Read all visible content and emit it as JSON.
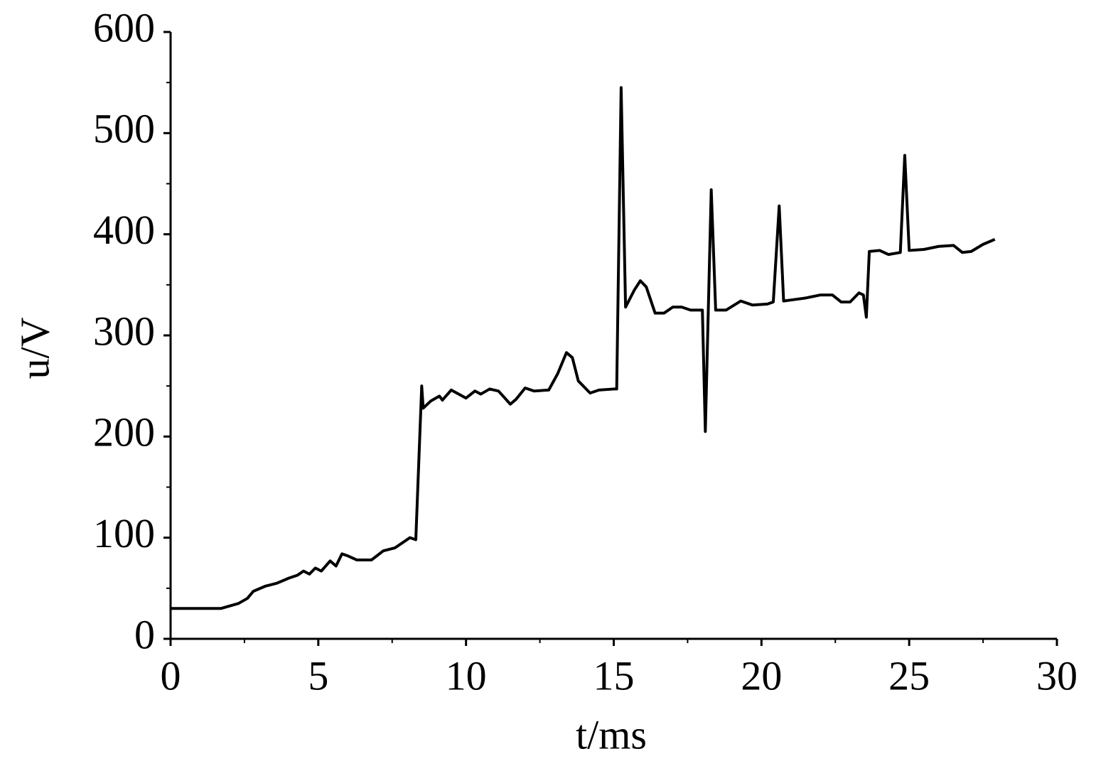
{
  "chart_data": {
    "type": "line",
    "x_label": "t/ms",
    "y_label": "u/V",
    "xlim": [
      0,
      30
    ],
    "xticks": [
      0,
      5,
      10,
      15,
      20,
      25,
      30
    ],
    "xminorticks": [
      2.5,
      7.5,
      12.5,
      17.5,
      22.5,
      27.5
    ],
    "ylim": [
      0,
      600
    ],
    "yticks": [
      0,
      100,
      200,
      300,
      400,
      500,
      600
    ],
    "yminorticks": [
      50,
      150,
      250,
      350,
      450,
      550
    ],
    "grid": false,
    "series": [
      {
        "color": "#000000",
        "x": [
          0,
          1.7,
          2.3,
          2.6,
          2.8,
          3.2,
          3.6,
          4.0,
          4.3,
          4.5,
          4.7,
          4.9,
          5.1,
          5.4,
          5.6,
          5.8,
          6.0,
          6.3,
          6.8,
          7.2,
          7.6,
          7.9,
          8.1,
          8.3,
          8.5,
          8.55,
          8.8,
          9.1,
          9.2,
          9.5,
          10.0,
          10.3,
          10.5,
          10.8,
          11.1,
          11.5,
          11.7,
          12.0,
          12.3,
          12.8,
          13.1,
          13.4,
          13.6,
          13.8,
          14.2,
          14.5,
          15.0,
          15.1,
          15.25,
          15.4,
          15.7,
          15.9,
          16.1,
          16.4,
          16.7,
          17.0,
          17.3,
          17.6,
          18.0,
          18.1,
          18.3,
          18.45,
          18.8,
          19.3,
          19.7,
          20.2,
          20.4,
          20.6,
          20.75,
          21.0,
          21.5,
          22.0,
          22.4,
          22.7,
          23.0,
          23.3,
          23.45,
          23.55,
          23.65,
          24.0,
          24.3,
          24.7,
          24.85,
          25.0,
          25.5,
          26.0,
          26.5,
          26.8,
          27.1,
          27.5,
          27.9
        ],
        "values": [
          30,
          30,
          35,
          40,
          47,
          52,
          55,
          60,
          63,
          67,
          64,
          70,
          67,
          77,
          72,
          84,
          82,
          78,
          78,
          87,
          90,
          96,
          100,
          98,
          250,
          228,
          235,
          240,
          236,
          246,
          238,
          245,
          242,
          247,
          245,
          232,
          237,
          248,
          245,
          246,
          262,
          283,
          278,
          255,
          243,
          246,
          247,
          247,
          545,
          328,
          345,
          354,
          348,
          322,
          322,
          328,
          328,
          325,
          325,
          205,
          444,
          325,
          325,
          334,
          330,
          331,
          333,
          428,
          334,
          335,
          337,
          340,
          340,
          333,
          333,
          342,
          340,
          318,
          383,
          384,
          380,
          382,
          478,
          384,
          385,
          388,
          389,
          382,
          383,
          390,
          395
        ]
      }
    ]
  }
}
